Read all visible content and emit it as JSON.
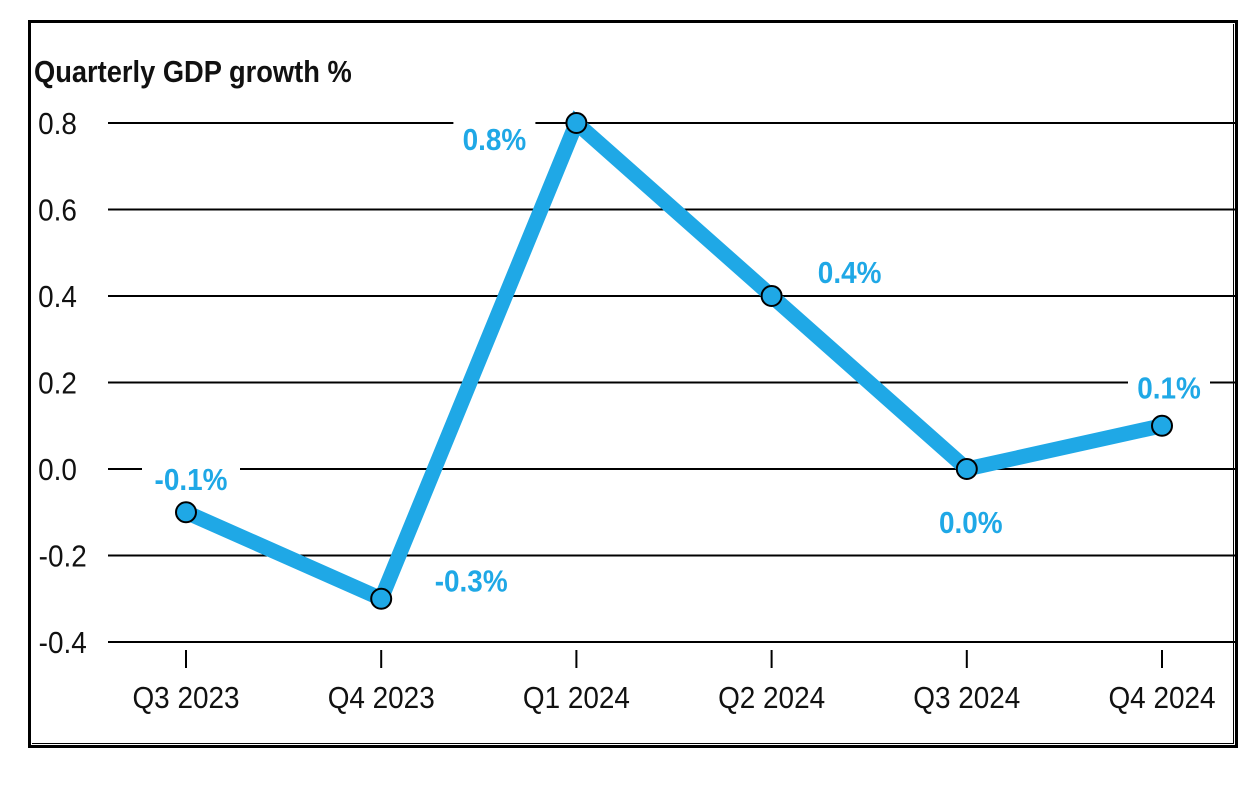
{
  "chart_data": {
    "type": "line",
    "title": "Quarterly GDP growth %",
    "xlabel": "",
    "ylabel": "",
    "categories": [
      "Q3 2023",
      "Q4 2023",
      "Q1 2024",
      "Q2 2024",
      "Q3 2024",
      "Q4 2024"
    ],
    "values": [
      -0.1,
      -0.3,
      0.8,
      0.4,
      0.0,
      0.1
    ],
    "data_labels": [
      "-0.1%",
      "-0.3%",
      "0.8%",
      "0.4%",
      "0.0%",
      "0.1%"
    ],
    "yticks": [
      "0.8",
      "0.6",
      "0.4",
      "0.2",
      "0.0",
      "-0.2",
      "-0.4"
    ],
    "ylim": [
      -0.4,
      0.8
    ],
    "grid": true,
    "legend": "none",
    "colors": {
      "line": "#1FA8E6",
      "label": "#1FA8E6",
      "marker_fill": "#1FA8E6",
      "marker_edge": "#000000",
      "grid": "#000000"
    }
  }
}
